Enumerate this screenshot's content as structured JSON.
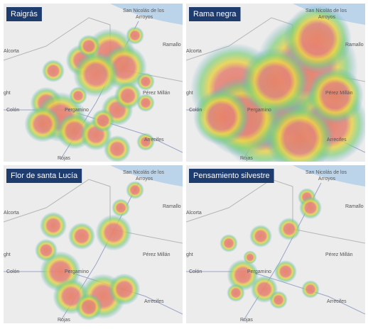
{
  "panels": [
    {
      "title": "Raigrás",
      "labels": [
        "San Nicolás de los",
        "Arroyos",
        "Ramallo",
        "Alcorta",
        "ght",
        "Pérez Millán",
        "Colón",
        "Pergamino",
        "Arrecifes",
        "Rojas"
      ]
    },
    {
      "title": "Rama negra",
      "labels": [
        "San Nicolás de los",
        "Arroyos",
        "Ramallo",
        "Alcorta",
        "ght",
        "Pérez Millán",
        "Colón",
        "Pergamino",
        "Arrecifes",
        "Rojas"
      ]
    },
    {
      "title": "Flor de santa Lucía",
      "labels": [
        "San Nicolás de los",
        "Arroyos",
        "Ramallo",
        "Alcorta",
        "ght",
        "Pérez Millán",
        "Colón",
        "Pergamino",
        "Arrecifes",
        "Rojas"
      ]
    },
    {
      "title": "Pensamiento silvestre",
      "labels": [
        "San Nicolás de los",
        "Arroyos",
        "Ramallo",
        "Alcorta",
        "ght",
        "Pérez Millán",
        "Colón",
        "Pergamino",
        "Arrecifes",
        "Rojas"
      ]
    }
  ]
}
